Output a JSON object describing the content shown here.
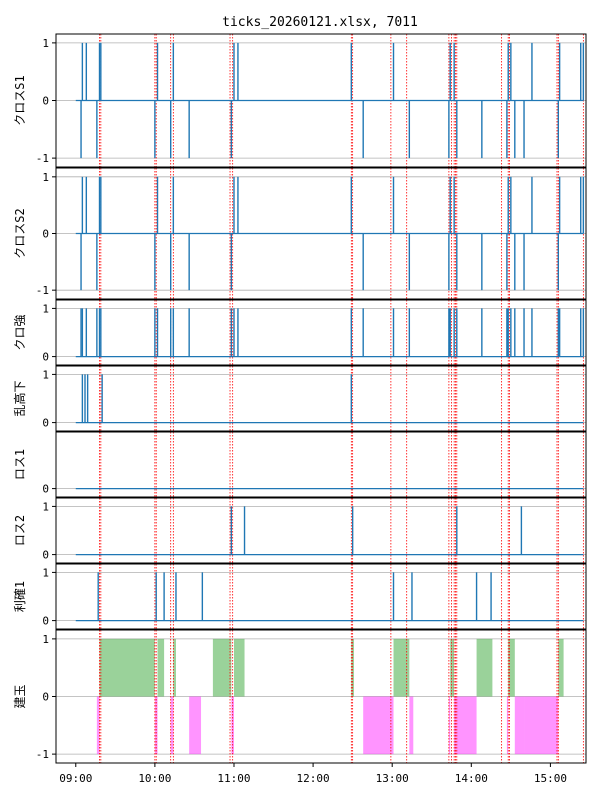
{
  "chart_data": {
    "type": "line",
    "title": "ticks_20260121.xlsx, 7011",
    "x_ticks": [
      "09:00",
      "10:00",
      "11:00",
      "12:00",
      "13:00",
      "14:00",
      "15:00"
    ],
    "x_tick_minutes": [
      540,
      600,
      660,
      720,
      780,
      840,
      900
    ],
    "x_range_minutes": [
      525,
      927
    ],
    "colors": {
      "line": "#1f77b4",
      "marker": "#ff0000",
      "grid": "#b0b0b0",
      "fill_pos": "#2ca02c",
      "fill_neg": "#ff00ff"
    },
    "vertical_markers_minutes": [
      558,
      559,
      600,
      601,
      612,
      614,
      657,
      659,
      749,
      750,
      779,
      791,
      823,
      825,
      827,
      828,
      829,
      863,
      868,
      869,
      905,
      906,
      925,
      927
    ],
    "panels": [
      {
        "ylabel": "クロスS1",
        "ylim": [
          -1.05,
          1.05
        ],
        "yticks": [
          -1,
          0,
          1
        ],
        "impulses": [
          {
            "t": 544,
            "v": -1
          },
          {
            "t": 545,
            "v": 1
          },
          {
            "t": 548,
            "v": 1
          },
          {
            "t": 556,
            "v": -1
          },
          {
            "t": 558,
            "v": 1
          },
          {
            "t": 559,
            "v": 1
          },
          {
            "t": 600,
            "v": -1
          },
          {
            "t": 602,
            "v": 1
          },
          {
            "t": 612,
            "v": -1
          },
          {
            "t": 614,
            "v": 1
          },
          {
            "t": 626,
            "v": -1
          },
          {
            "t": 658,
            "v": -1
          },
          {
            "t": 660,
            "v": 1
          },
          {
            "t": 663,
            "v": 1
          },
          {
            "t": 749,
            "v": 1
          },
          {
            "t": 758,
            "v": -1
          },
          {
            "t": 781,
            "v": 1
          },
          {
            "t": 793,
            "v": -1
          },
          {
            "t": 823,
            "v": -1
          },
          {
            "t": 824,
            "v": 1
          },
          {
            "t": 827,
            "v": 1
          },
          {
            "t": 829,
            "v": -1
          },
          {
            "t": 848,
            "v": -1
          },
          {
            "t": 867,
            "v": -1
          },
          {
            "t": 868,
            "v": 1
          },
          {
            "t": 870,
            "v": 1
          },
          {
            "t": 873,
            "v": -1
          },
          {
            "t": 880,
            "v": -1
          },
          {
            "t": 886,
            "v": 1
          },
          {
            "t": 906,
            "v": -1
          },
          {
            "t": 907,
            "v": 1
          },
          {
            "t": 923,
            "v": 1
          },
          {
            "t": 925,
            "v": 1
          }
        ]
      },
      {
        "ylabel": "クロスS2",
        "ylim": [
          -1.05,
          1.05
        ],
        "yticks": [
          -1,
          0,
          1
        ],
        "impulses": [
          {
            "t": 544,
            "v": -1
          },
          {
            "t": 545,
            "v": 1
          },
          {
            "t": 548,
            "v": 1
          },
          {
            "t": 556,
            "v": -1
          },
          {
            "t": 558,
            "v": 1
          },
          {
            "t": 559,
            "v": 1
          },
          {
            "t": 600,
            "v": -1
          },
          {
            "t": 602,
            "v": 1
          },
          {
            "t": 612,
            "v": -1
          },
          {
            "t": 614,
            "v": 1
          },
          {
            "t": 626,
            "v": -1
          },
          {
            "t": 658,
            "v": -1
          },
          {
            "t": 660,
            "v": 1
          },
          {
            "t": 663,
            "v": 1
          },
          {
            "t": 749,
            "v": 1
          },
          {
            "t": 758,
            "v": -1
          },
          {
            "t": 781,
            "v": 1
          },
          {
            "t": 793,
            "v": -1
          },
          {
            "t": 823,
            "v": -1
          },
          {
            "t": 824,
            "v": 1
          },
          {
            "t": 827,
            "v": 1
          },
          {
            "t": 829,
            "v": -1
          },
          {
            "t": 848,
            "v": -1
          },
          {
            "t": 867,
            "v": -1
          },
          {
            "t": 868,
            "v": 1
          },
          {
            "t": 870,
            "v": 1
          },
          {
            "t": 873,
            "v": -1
          },
          {
            "t": 880,
            "v": -1
          },
          {
            "t": 886,
            "v": 1
          },
          {
            "t": 906,
            "v": -1
          },
          {
            "t": 907,
            "v": 1
          },
          {
            "t": 923,
            "v": 1
          },
          {
            "t": 925,
            "v": 1
          }
        ]
      },
      {
        "ylabel": "クロ強",
        "ylim": [
          -0.05,
          1.05
        ],
        "yticks": [
          0,
          1
        ],
        "impulses": [
          {
            "t": 544,
            "v": 1
          },
          {
            "t": 545,
            "v": 1
          },
          {
            "t": 548,
            "v": 1
          },
          {
            "t": 556,
            "v": 1
          },
          {
            "t": 558,
            "v": 1
          },
          {
            "t": 559,
            "v": 1
          },
          {
            "t": 600,
            "v": 1
          },
          {
            "t": 602,
            "v": 1
          },
          {
            "t": 612,
            "v": 1
          },
          {
            "t": 614,
            "v": 1
          },
          {
            "t": 626,
            "v": 1
          },
          {
            "t": 658,
            "v": 1
          },
          {
            "t": 660,
            "v": 1
          },
          {
            "t": 663,
            "v": 1
          },
          {
            "t": 749,
            "v": 1
          },
          {
            "t": 758,
            "v": 1
          },
          {
            "t": 781,
            "v": 1
          },
          {
            "t": 793,
            "v": 1
          },
          {
            "t": 823,
            "v": 1
          },
          {
            "t": 824,
            "v": 1
          },
          {
            "t": 827,
            "v": 1
          },
          {
            "t": 829,
            "v": 1
          },
          {
            "t": 848,
            "v": 1
          },
          {
            "t": 867,
            "v": 1
          },
          {
            "t": 868,
            "v": 1
          },
          {
            "t": 870,
            "v": 1
          },
          {
            "t": 873,
            "v": 1
          },
          {
            "t": 880,
            "v": 1
          },
          {
            "t": 886,
            "v": 1
          },
          {
            "t": 906,
            "v": 1
          },
          {
            "t": 907,
            "v": 1
          },
          {
            "t": 923,
            "v": 1
          },
          {
            "t": 925,
            "v": 1
          }
        ]
      },
      {
        "ylabel": "乱高下",
        "ylim": [
          -0.05,
          1.05
        ],
        "yticks": [
          0,
          1
        ],
        "impulses": [
          {
            "t": 545,
            "v": 1
          },
          {
            "t": 547,
            "v": 1
          },
          {
            "t": 549,
            "v": 1
          },
          {
            "t": 560,
            "v": 1
          },
          {
            "t": 749,
            "v": 1
          }
        ]
      },
      {
        "ylabel": "ロス1",
        "ylim": [
          -0.05,
          1.05
        ],
        "yticks": [
          0
        ],
        "impulses": []
      },
      {
        "ylabel": "ロス2",
        "ylim": [
          -0.05,
          1.05
        ],
        "yticks": [
          0,
          1
        ],
        "impulses": [
          {
            "t": 658,
            "v": 1
          },
          {
            "t": 668,
            "v": 1
          },
          {
            "t": 750,
            "v": 1
          },
          {
            "t": 829,
            "v": 1
          },
          {
            "t": 878,
            "v": 1
          }
        ]
      },
      {
        "ylabel": "利確1",
        "ylim": [
          -0.05,
          1.05
        ],
        "yticks": [
          0,
          1
        ],
        "impulses": [
          {
            "t": 557,
            "v": 1
          },
          {
            "t": 601,
            "v": 1
          },
          {
            "t": 607,
            "v": 1
          },
          {
            "t": 616,
            "v": 1
          },
          {
            "t": 636,
            "v": 1
          },
          {
            "t": 781,
            "v": 1
          },
          {
            "t": 795,
            "v": 1
          },
          {
            "t": 844,
            "v": 1
          },
          {
            "t": 855,
            "v": 1
          }
        ]
      },
      {
        "ylabel": "建玉",
        "ylim": [
          -1.05,
          1.05
        ],
        "yticks": [
          -1,
          0,
          1
        ],
        "regions": [
          {
            "start": 556,
            "end": 558,
            "v": -1
          },
          {
            "start": 558,
            "end": 600,
            "v": 1
          },
          {
            "start": 600,
            "end": 602,
            "v": -1
          },
          {
            "start": 602,
            "end": 607,
            "v": 1
          },
          {
            "start": 612,
            "end": 614,
            "v": -1
          },
          {
            "start": 614,
            "end": 616,
            "v": 1
          },
          {
            "start": 626,
            "end": 635,
            "v": -1
          },
          {
            "start": 644,
            "end": 658,
            "v": 1
          },
          {
            "start": 658,
            "end": 660,
            "v": -1
          },
          {
            "start": 660,
            "end": 668,
            "v": 1
          },
          {
            "start": 749,
            "end": 751,
            "v": 1
          },
          {
            "start": 758,
            "end": 781,
            "v": -1
          },
          {
            "start": 781,
            "end": 793,
            "v": 1
          },
          {
            "start": 793,
            "end": 796,
            "v": -1
          },
          {
            "start": 823,
            "end": 824,
            "v": -1
          },
          {
            "start": 824,
            "end": 827,
            "v": 1
          },
          {
            "start": 827,
            "end": 829,
            "v": -1
          },
          {
            "start": 829,
            "end": 844,
            "v": -1
          },
          {
            "start": 844,
            "end": 856,
            "v": 1
          },
          {
            "start": 867,
            "end": 868,
            "v": -1
          },
          {
            "start": 868,
            "end": 873,
            "v": 1
          },
          {
            "start": 873,
            "end": 880,
            "v": -1
          },
          {
            "start": 880,
            "end": 906,
            "v": -1
          },
          {
            "start": 906,
            "end": 910,
            "v": 1
          }
        ]
      }
    ]
  }
}
